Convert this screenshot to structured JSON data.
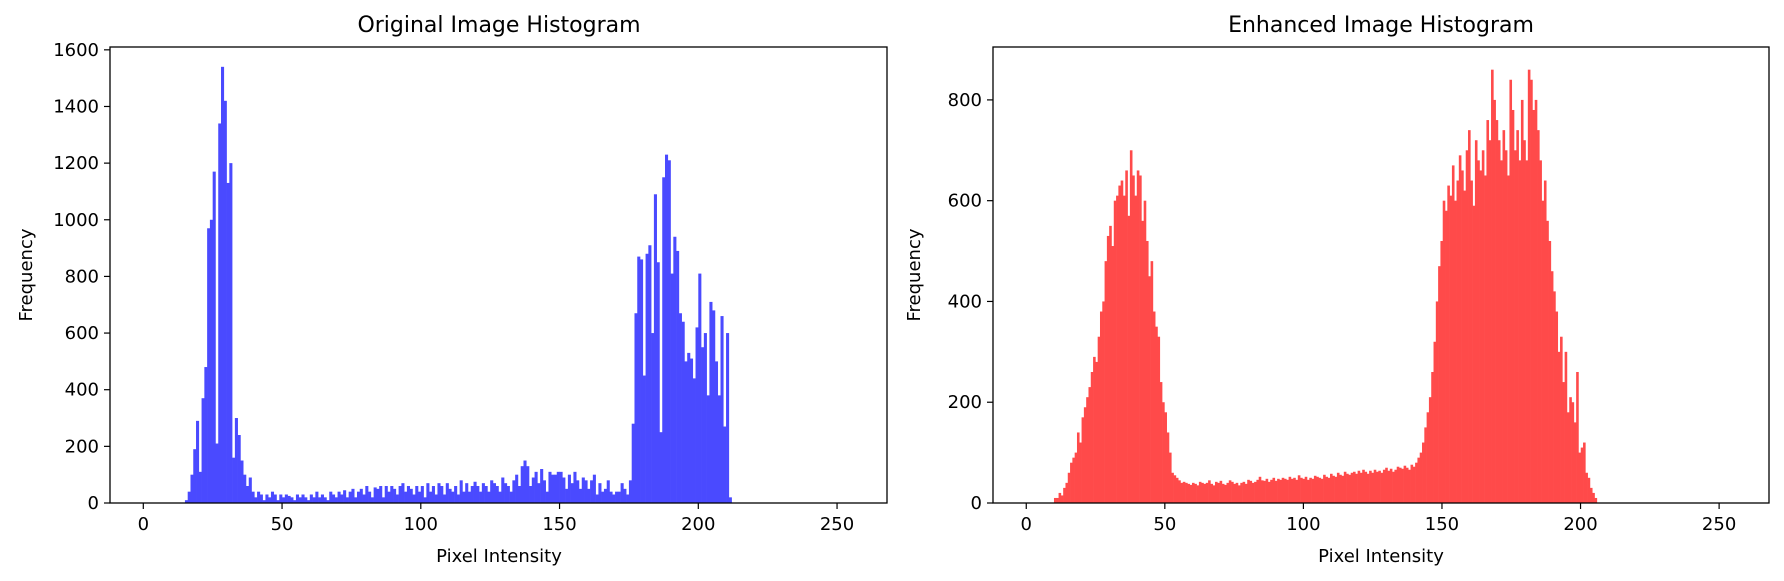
{
  "chart_data": [
    {
      "type": "bar",
      "title": "Original Image Histogram",
      "xlabel": "Pixel Intensity",
      "ylabel": "Frequency",
      "xlim": [
        -12,
        268
      ],
      "ylim": [
        0,
        1610
      ],
      "xticks": [
        0,
        50,
        100,
        150,
        200,
        250
      ],
      "yticks": [
        0,
        200,
        400,
        600,
        800,
        1000,
        1200,
        1400,
        1600
      ],
      "grid": false,
      "color": "#4a4aff",
      "series": [
        {
          "bin_start": 0,
          "bin_width": 1,
          "values": [
            0,
            0,
            0,
            0,
            0,
            0,
            0,
            0,
            0,
            0,
            0,
            0,
            0,
            0,
            0,
            10,
            40,
            100,
            190,
            290,
            110,
            370,
            480,
            970,
            1000,
            1170,
            210,
            1340,
            1540,
            1420,
            1130,
            1200,
            160,
            300,
            240,
            150,
            100,
            60,
            90,
            40,
            20,
            40,
            30,
            10,
            30,
            20,
            40,
            30,
            10,
            30,
            20,
            30,
            25,
            20,
            10,
            30,
            20,
            30,
            20,
            10,
            30,
            20,
            40,
            20,
            30,
            20,
            10,
            40,
            30,
            20,
            40,
            30,
            45,
            20,
            40,
            50,
            20,
            40,
            50,
            30,
            60,
            40,
            20,
            55,
            50,
            60,
            20,
            60,
            40,
            60,
            50,
            30,
            60,
            70,
            40,
            60,
            50,
            30,
            60,
            40,
            60,
            20,
            70,
            40,
            60,
            30,
            70,
            60,
            30,
            70,
            50,
            40,
            60,
            30,
            80,
            40,
            70,
            40,
            60,
            75,
            60,
            40,
            70,
            60,
            40,
            80,
            70,
            60,
            40,
            90,
            70,
            60,
            40,
            80,
            100,
            60,
            130,
            150,
            130,
            60,
            90,
            110,
            70,
            120,
            80,
            40,
            110,
            100,
            100,
            110,
            110,
            90,
            50,
            100,
            70,
            110,
            80,
            50,
            90,
            80,
            50,
            80,
            100,
            30,
            70,
            40,
            50,
            80,
            40,
            30,
            40,
            40,
            70,
            50,
            30,
            80,
            280,
            670,
            870,
            860,
            450,
            880,
            910,
            600,
            1090,
            850,
            250,
            1150,
            1230,
            1210,
            810,
            940,
            890,
            670,
            640,
            500,
            530,
            510,
            440,
            620,
            810,
            550,
            600,
            380,
            710,
            680,
            500,
            380,
            660,
            270,
            600,
            20,
            0,
            0,
            0,
            0,
            0,
            0,
            0,
            0,
            0,
            0,
            0,
            0,
            0,
            0,
            0,
            0,
            0,
            0,
            0,
            0,
            0,
            0,
            0,
            0,
            0
          ]
        }
      ]
    },
    {
      "type": "bar",
      "title": "Enhanced Image Histogram",
      "xlabel": "Pixel Intensity",
      "ylabel": "Frequency",
      "xlim": [
        -12,
        268
      ],
      "ylim": [
        0,
        905
      ],
      "xticks": [
        0,
        50,
        100,
        150,
        200,
        250
      ],
      "yticks": [
        0,
        200,
        400,
        600,
        800
      ],
      "grid": false,
      "color": "#ff4a4a",
      "series": [
        {
          "bin_start": 10,
          "bin_width": 0.83,
          "values": [
            10,
            10,
            20,
            15,
            30,
            40,
            60,
            80,
            90,
            100,
            140,
            120,
            170,
            190,
            210,
            230,
            260,
            290,
            280,
            330,
            380,
            400,
            480,
            530,
            550,
            510,
            600,
            610,
            630,
            640,
            610,
            660,
            570,
            700,
            650,
            610,
            660,
            650,
            560,
            600,
            520,
            450,
            480,
            380,
            350,
            330,
            240,
            200,
            180,
            140,
            100,
            60,
            55,
            50,
            45,
            40,
            42,
            40,
            38,
            36,
            40,
            38,
            35,
            42,
            40,
            38,
            40,
            45,
            38,
            35,
            42,
            40,
            44,
            38,
            36,
            40,
            45,
            42,
            38,
            40,
            35,
            40,
            42,
            38,
            46,
            44,
            40,
            42,
            46,
            52,
            45,
            44,
            48,
            42,
            46,
            50,
            44,
            48,
            46,
            50,
            48,
            46,
            52,
            48,
            50,
            46,
            55,
            50,
            48,
            52,
            46,
            50,
            48,
            54,
            52,
            50,
            48,
            56,
            52,
            50,
            58,
            54,
            52,
            60,
            56,
            54,
            62,
            58,
            56,
            60,
            62,
            58,
            64,
            60,
            66,
            62,
            58,
            64,
            60,
            66,
            62,
            64,
            60,
            66,
            70,
            64,
            68,
            62,
            66,
            72,
            70,
            68,
            74,
            70,
            66,
            76,
            72,
            80,
            90,
            100,
            120,
            150,
            180,
            210,
            260,
            320,
            400,
            470,
            520,
            600,
            580,
            630,
            610,
            670,
            600,
            640,
            690,
            660,
            620,
            700,
            740,
            640,
            590,
            720,
            680,
            660,
            700,
            650,
            760,
            720,
            860,
            800,
            760,
            720,
            680,
            740,
            700,
            650,
            840,
            780,
            700,
            740,
            680,
            800,
            720,
            680,
            860,
            840,
            780,
            800,
            740,
            680,
            600,
            640,
            560,
            520,
            460,
            420,
            380,
            300,
            330,
            240,
            300,
            180,
            210,
            200,
            160,
            260,
            100,
            110,
            120,
            60,
            50,
            30,
            20,
            10
          ]
        }
      ]
    }
  ]
}
